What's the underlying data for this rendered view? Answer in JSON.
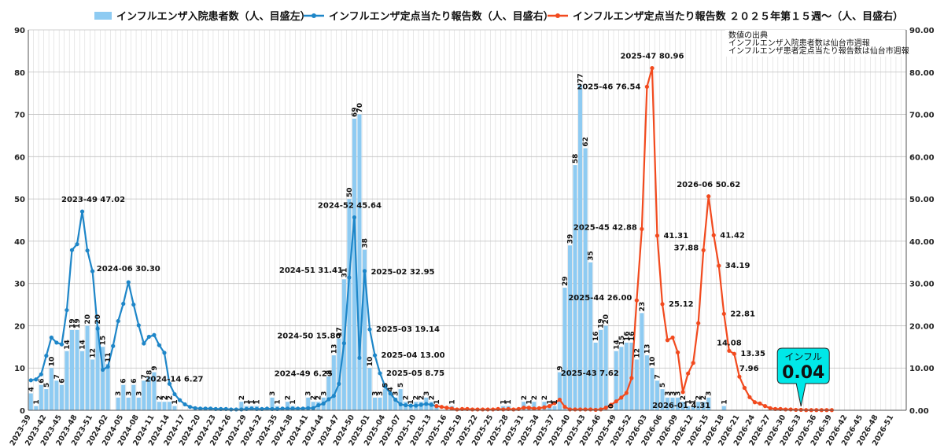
{
  "chart_data": {
    "type": "bar",
    "legend": {
      "position": "top",
      "entries": [
        {
          "key": "bars",
          "label": "インフルエンザ入院患者数（人、目盛左）",
          "color": "#8ECBF2"
        },
        {
          "key": "line1",
          "label": "インフルエンザ定点当たり報告数（人、目盛右）",
          "color": "#1E86C8"
        },
        {
          "key": "line2",
          "label": "インフルエンザ定点当たり報告数 ２０２５年第１５週～（人、目盛右）",
          "color": "#F24A1E"
        }
      ]
    },
    "note_lines": [
      "数値の出典",
      "インフルエンザ入院患者数は仙台市週報",
      "インフルエンザ患者定点当たり報告数は仙台市週報"
    ],
    "y_left": {
      "min": 0,
      "max": 90,
      "ticks": [
        "0",
        "10",
        "20",
        "30",
        "40",
        "50",
        "60",
        "70",
        "80",
        "90"
      ]
    },
    "y_right": {
      "min": 0,
      "max": 90,
      "ticks": [
        "0.00",
        "10.00",
        "20.00",
        "30.00",
        "40.00",
        "50.00",
        "60.00",
        "70.00",
        "80.00",
        "90.00"
      ]
    },
    "grid": true,
    "x_start": {
      "year": 2023,
      "week": 39
    },
    "x_label_every": 3,
    "x_count": 171,
    "bars": [
      4,
      1,
      6,
      5,
      10,
      7,
      6,
      14,
      19,
      19,
      14,
      20,
      12,
      20,
      15,
      11,
      0,
      3,
      6,
      3,
      6,
      3,
      7,
      8,
      9,
      2,
      2,
      2,
      1,
      0,
      0,
      0,
      0,
      0,
      0,
      0,
      0,
      0,
      0,
      0,
      0,
      2,
      1,
      1,
      1,
      0,
      0,
      3,
      1,
      0,
      2,
      1,
      0,
      0,
      3,
      2,
      2,
      3,
      8,
      13,
      17,
      31,
      50,
      69,
      70,
      38,
      10,
      3,
      3,
      5,
      4,
      3,
      5,
      2,
      1,
      2,
      2,
      3,
      2,
      1,
      0,
      0,
      1,
      0,
      0,
      0,
      0,
      0,
      0,
      0,
      0,
      0,
      1,
      1,
      0,
      0,
      2,
      1,
      2,
      0,
      2,
      1,
      1,
      9,
      29,
      39,
      58,
      77,
      62,
      35,
      16,
      19,
      20,
      0,
      14,
      15,
      16,
      16,
      12,
      23,
      13,
      10,
      7,
      5,
      3,
      3,
      3,
      2,
      1,
      1,
      2,
      2,
      3,
      0,
      0,
      1,
      0,
      0,
      0,
      0,
      0,
      0,
      0,
      0,
      0,
      0,
      0,
      0,
      0,
      0,
      0,
      0,
      0,
      0,
      0,
      0,
      0,
      0,
      0,
      0,
      0,
      0,
      0,
      0,
      0,
      0,
      0,
      0,
      0,
      0,
      0
    ],
    "bar_labels": [
      {
        "i": 0,
        "t": "4"
      },
      {
        "i": 1,
        "t": "1"
      },
      {
        "i": 2,
        "t": "6"
      },
      {
        "i": 3,
        "t": "5"
      },
      {
        "i": 4,
        "t": "10"
      },
      {
        "i": 5,
        "t": "7"
      },
      {
        "i": 6,
        "t": "6"
      },
      {
        "i": 7,
        "t": "14"
      },
      {
        "i": 8,
        "t": "19"
      },
      {
        "i": 9,
        "t": "19"
      },
      {
        "i": 10,
        "t": "14"
      },
      {
        "i": 11,
        "t": "20"
      },
      {
        "i": 12,
        "t": "12"
      },
      {
        "i": 13,
        "t": "20"
      },
      {
        "i": 14,
        "t": "15"
      },
      {
        "i": 15,
        "t": "11"
      },
      {
        "i": 17,
        "t": "3"
      },
      {
        "i": 18,
        "t": "6"
      },
      {
        "i": 19,
        "t": "3"
      },
      {
        "i": 20,
        "t": "6"
      },
      {
        "i": 21,
        "t": "3"
      },
      {
        "i": 22,
        "t": "7"
      },
      {
        "i": 23,
        "t": "8"
      },
      {
        "i": 24,
        "t": "9"
      },
      {
        "i": 25,
        "t": "2"
      },
      {
        "i": 26,
        "t": "2"
      },
      {
        "i": 27,
        "t": "2"
      },
      {
        "i": 28,
        "t": "1"
      },
      {
        "i": 41,
        "t": "2"
      },
      {
        "i": 42,
        "t": "1"
      },
      {
        "i": 43,
        "t": "1"
      },
      {
        "i": 44,
        "t": "1"
      },
      {
        "i": 47,
        "t": "3"
      },
      {
        "i": 48,
        "t": "1"
      },
      {
        "i": 50,
        "t": "2"
      },
      {
        "i": 51,
        "t": "1"
      },
      {
        "i": 54,
        "t": "3"
      },
      {
        "i": 55,
        "t": "2"
      },
      {
        "i": 56,
        "t": "2"
      },
      {
        "i": 57,
        "t": "3"
      },
      {
        "i": 58,
        "t": "8"
      },
      {
        "i": 59,
        "t": "13"
      },
      {
        "i": 60,
        "t": "17"
      },
      {
        "i": 61,
        "t": "31"
      },
      {
        "i": 62,
        "t": "50"
      },
      {
        "i": 63,
        "t": "69"
      },
      {
        "i": 64,
        "t": "70"
      },
      {
        "i": 65,
        "t": "38"
      },
      {
        "i": 66,
        "t": "10"
      },
      {
        "i": 67,
        "t": "3"
      },
      {
        "i": 68,
        "t": "3"
      },
      {
        "i": 69,
        "t": "5"
      },
      {
        "i": 70,
        "t": "4"
      },
      {
        "i": 71,
        "t": "3"
      },
      {
        "i": 72,
        "t": "5"
      },
      {
        "i": 73,
        "t": "2"
      },
      {
        "i": 74,
        "t": "1"
      },
      {
        "i": 75,
        "t": "2"
      },
      {
        "i": 76,
        "t": "2"
      },
      {
        "i": 77,
        "t": "3"
      },
      {
        "i": 78,
        "t": "2"
      },
      {
        "i": 79,
        "t": "1"
      },
      {
        "i": 82,
        "t": "1"
      },
      {
        "i": 92,
        "t": "1"
      },
      {
        "i": 93,
        "t": "1"
      },
      {
        "i": 96,
        "t": "2"
      },
      {
        "i": 97,
        "t": "1"
      },
      {
        "i": 98,
        "t": "2"
      },
      {
        "i": 100,
        "t": "2"
      },
      {
        "i": 101,
        "t": "1"
      },
      {
        "i": 102,
        "t": "1"
      },
      {
        "i": 103,
        "t": "9"
      },
      {
        "i": 104,
        "t": "29"
      },
      {
        "i": 105,
        "t": "39"
      },
      {
        "i": 106,
        "t": "58"
      },
      {
        "i": 107,
        "t": "77"
      },
      {
        "i": 108,
        "t": "62"
      },
      {
        "i": 109,
        "t": "35"
      },
      {
        "i": 110,
        "t": "16"
      },
      {
        "i": 111,
        "t": "19"
      },
      {
        "i": 112,
        "t": "20"
      },
      {
        "i": 113,
        "t": "0"
      },
      {
        "i": 114,
        "t": "14"
      },
      {
        "i": 115,
        "t": "15"
      },
      {
        "i": 116,
        "t": "16"
      },
      {
        "i": 117,
        "t": "16"
      },
      {
        "i": 118,
        "t": "12"
      },
      {
        "i": 119,
        "t": "23"
      },
      {
        "i": 120,
        "t": "13"
      },
      {
        "i": 121,
        "t": "10"
      },
      {
        "i": 122,
        "t": "7"
      },
      {
        "i": 123,
        "t": "5"
      },
      {
        "i": 124,
        "t": "3"
      },
      {
        "i": 125,
        "t": "3"
      },
      {
        "i": 126,
        "t": "3"
      },
      {
        "i": 127,
        "t": "2"
      },
      {
        "i": 128,
        "t": "1"
      },
      {
        "i": 129,
        "t": "1"
      },
      {
        "i": 130,
        "t": "2"
      },
      {
        "i": 131,
        "t": "2"
      },
      {
        "i": 132,
        "t": "3"
      },
      {
        "i": 135,
        "t": "1"
      }
    ],
    "line1": {
      "start": 0,
      "values": [
        7.1,
        7.3,
        8.5,
        12.9,
        17.2,
        16.0,
        15.6,
        23.7,
        37.9,
        39.3,
        47.02,
        37.8,
        32.9,
        19.3,
        9.6,
        10.3,
        15.2,
        21.1,
        25.2,
        30.3,
        25.0,
        20.1,
        15.8,
        17.4,
        17.8,
        15.4,
        13.6,
        6.27,
        3.8,
        2.4,
        1.4,
        0.8,
        0.5,
        0.4,
        0.4,
        0.4,
        0.3,
        0.3,
        0.3,
        0.2,
        0.2,
        0.2,
        0.3,
        0.4,
        0.3,
        0.3,
        0.4,
        0.3,
        0.3,
        0.4,
        0.4,
        0.4,
        0.4,
        0.4,
        0.5,
        0.5,
        1.2,
        1.6,
        2.6,
        3.4,
        6.25,
        15.86,
        31.41,
        45.64,
        12.4,
        32.95,
        19.14,
        13.0,
        8.75,
        5.6,
        4.0,
        2.5,
        1.4,
        1.2,
        1.1,
        1.1,
        1.3,
        1.5,
        1.3,
        1.0
      ]
    },
    "line2": {
      "start": 79,
      "values": [
        1.0,
        0.8,
        0.6,
        0.4,
        0.2,
        0.3,
        0.3,
        0.2,
        0.2,
        0.2,
        0.2,
        0.2,
        0.3,
        0.2,
        0.3,
        0.2,
        0.3,
        0.6,
        0.6,
        0.4,
        0.5,
        0.7,
        1.0,
        1.7,
        2.5,
        0.8,
        0.2,
        0.2,
        0.2,
        0.2,
        0.2,
        0.1,
        0.2,
        0.6,
        1.3,
        2.1,
        3.0,
        4.1,
        7.62,
        26.0,
        42.88,
        76.54,
        80.96,
        41.31,
        25.12,
        16.6,
        17.2,
        13.7,
        4.31,
        8.7,
        11.2,
        20.6,
        37.88,
        50.62,
        41.42,
        34.19,
        22.81,
        14.08,
        13.35,
        7.96,
        5.3,
        3.1,
        1.9,
        1.6,
        1.0,
        0.5,
        0.3,
        0.3,
        0.2,
        0.2,
        0.1,
        0.1,
        0.04,
        0.04,
        0.04,
        0.04,
        0.04,
        0.04
      ]
    },
    "annotations": [
      {
        "i": 10,
        "series": "line1",
        "text": "2023-49 47.02",
        "dx": 14,
        "dy": -12,
        "anchor": "middle"
      },
      {
        "i": 19,
        "series": "line1",
        "text": "2024-06 30.30",
        "dx": 0,
        "dy": -14,
        "anchor": "middle"
      },
      {
        "i": 27,
        "series": "line1",
        "text": "2024-14 6.27",
        "dx": 6,
        "dy": -3,
        "anchor": "middle"
      },
      {
        "i": 60,
        "series": "line1",
        "text": "2024-49 6.25",
        "dx": -8,
        "dy": -10,
        "anchor": "end"
      },
      {
        "i": 61,
        "series": "line1",
        "text": "2024-50 15.86",
        "dx": -4,
        "dy": -6,
        "anchor": "end"
      },
      {
        "i": 62,
        "series": "line1",
        "text": "2024-51 31.41",
        "dx": -8,
        "dy": -6,
        "anchor": "end"
      },
      {
        "i": 63,
        "series": "line1",
        "text": "2024-52 45.64",
        "dx": -6,
        "dy": -12,
        "anchor": "middle"
      },
      {
        "i": 65,
        "series": "line1",
        "text": "2025-02 32.95",
        "dx": 8,
        "dy": 4,
        "anchor": "start"
      },
      {
        "i": 66,
        "series": "line1",
        "text": "2025-03 19.14",
        "dx": 8,
        "dy": 3,
        "anchor": "start"
      },
      {
        "i": 67,
        "series": "line1",
        "text": "2025-04 13.00",
        "dx": 8,
        "dy": 3,
        "anchor": "start"
      },
      {
        "i": 68,
        "series": "line1",
        "text": "2025-05 8.75",
        "dx": 8,
        "dy": 3,
        "anchor": "start"
      },
      {
        "i": 117,
        "series": "line2",
        "text": "2025-43 7.62",
        "dx": -16,
        "dy": -3,
        "anchor": "end"
      },
      {
        "i": 118,
        "series": "line2",
        "text": "2025-44 26.00",
        "dx": -6,
        "dy": 0,
        "anchor": "end"
      },
      {
        "i": 119,
        "series": "line2",
        "text": "2025-45 42.88",
        "dx": -6,
        "dy": 1,
        "anchor": "end"
      },
      {
        "i": 120,
        "series": "line2",
        "text": "2025-46 76.54",
        "dx": -8,
        "dy": 3,
        "anchor": "end"
      },
      {
        "i": 121,
        "series": "line2",
        "text": "2025-47 80.96",
        "dx": 0,
        "dy": -12,
        "anchor": "middle"
      },
      {
        "i": 122,
        "series": "line2",
        "text": "41.31",
        "dx": 8,
        "dy": 3,
        "anchor": "start"
      },
      {
        "i": 123,
        "series": "line2",
        "text": "25.12",
        "dx": 8,
        "dy": 3,
        "anchor": "start"
      },
      {
        "i": 127,
        "series": "line2",
        "text": "2026-01 4.31",
        "dx": -2,
        "dy": 20,
        "anchor": "middle"
      },
      {
        "i": 131,
        "series": "line2",
        "text": "37.88",
        "dx": -6,
        "dy": 0,
        "anchor": "end"
      },
      {
        "i": 132,
        "series": "line2",
        "text": "2026-06 50.62",
        "dx": 0,
        "dy": -12,
        "anchor": "middle"
      },
      {
        "i": 133,
        "series": "line2",
        "text": "41.42",
        "dx": 8,
        "dy": 3,
        "anchor": "start"
      },
      {
        "i": 134,
        "series": "line2",
        "text": "34.19",
        "dx": 8,
        "dy": 3,
        "anchor": "start"
      },
      {
        "i": 135,
        "series": "line2",
        "text": "22.81",
        "dx": 8,
        "dy": 3,
        "anchor": "start"
      },
      {
        "i": 136,
        "series": "line2",
        "text": "14.08",
        "dx": 0,
        "dy": -7,
        "anchor": "middle"
      },
      {
        "i": 137,
        "series": "line2",
        "text": "13.35",
        "dx": 8,
        "dy": 3,
        "anchor": "start"
      },
      {
        "i": 138,
        "series": "line2",
        "text": "7.96",
        "dx": 0,
        "dy": -7,
        "anchor": "start"
      }
    ],
    "callout": {
      "title": "インフル",
      "value": "0.04",
      "at": 150,
      "bg": "#00E8E8"
    }
  }
}
